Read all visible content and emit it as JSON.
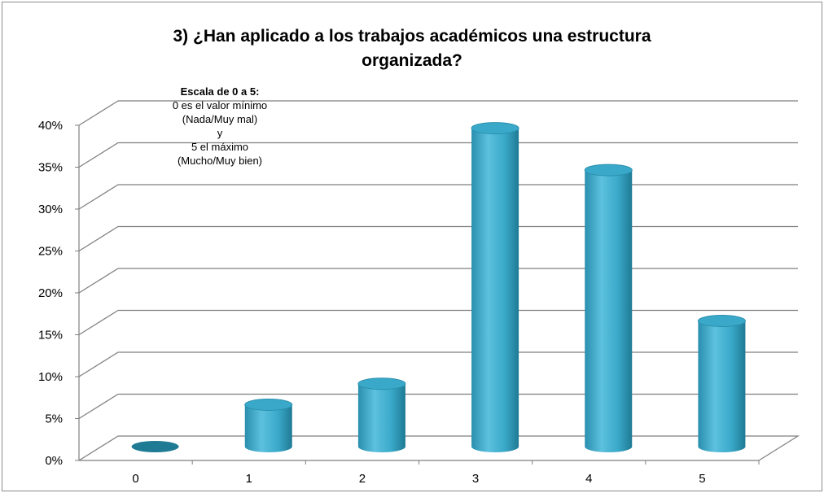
{
  "chart_data": {
    "type": "bar",
    "title_line1": "3) ¿Han aplicado a los trabajos académicos una estructura",
    "title_line2": "organizada?",
    "categories": [
      "0",
      "1",
      "2",
      "3",
      "4",
      "5"
    ],
    "values": [
      0,
      5,
      7.5,
      38,
      33,
      15
    ],
    "ylim": [
      0,
      40
    ],
    "yticks": [
      "0%",
      "5%",
      "10%",
      "15%",
      "20%",
      "25%",
      "30%",
      "35%",
      "40%"
    ],
    "grid": true,
    "bar_color": "#3aa9c9",
    "bar_highlight": "#6cc8e2",
    "bar_shadow": "#1f7a94"
  },
  "note": {
    "heading": "Escala de 0 a 5:",
    "line1": "0 es el valor mínimo",
    "line2": "(Nada/Muy mal)",
    "line3": "y",
    "line4": "5 el máximo",
    "line5": "(Mucho/Muy bien)"
  }
}
